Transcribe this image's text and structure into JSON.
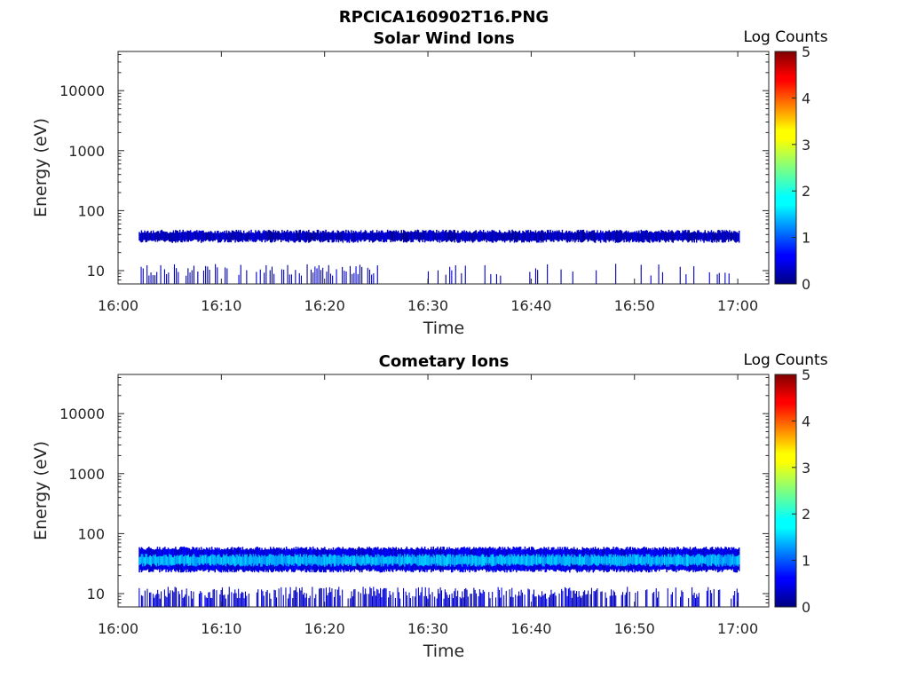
{
  "figure_title": "RPCICA160902T16.PNG",
  "colorbar_label": "Log Counts",
  "colorbar_ticks": [
    "0",
    "1",
    "2",
    "3",
    "4",
    "5"
  ],
  "colorbar_range": [
    0,
    5
  ],
  "colormap": "jet",
  "chart_data": [
    {
      "type": "heatmap",
      "title": "Solar Wind Ions",
      "xlabel": "Time",
      "ylabel": "Energy (eV)",
      "y_scale": "log",
      "xlim": [
        "16:00",
        "17:03"
      ],
      "ylim": [
        6,
        45000
      ],
      "x_ticks": [
        "16:00",
        "16:10",
        "16:20",
        "16:30",
        "16:40",
        "16:50",
        "17:00"
      ],
      "y_ticks": [
        "10",
        "100",
        "1000",
        "10000"
      ],
      "data_time_range": [
        "16:02",
        "17:00"
      ],
      "bands": [
        {
          "energy_range_eV": [
            31,
            45
          ],
          "log_counts": 0.3,
          "coverage": "continuous"
        },
        {
          "energy_range_eV": [
            6,
            13
          ],
          "log_counts": 0.2,
          "coverage": "sparse"
        }
      ]
    },
    {
      "type": "heatmap",
      "title": "Cometary Ions",
      "xlabel": "Time",
      "ylabel": "Energy (eV)",
      "y_scale": "log",
      "xlim": [
        "16:00",
        "17:03"
      ],
      "ylim": [
        6,
        45000
      ],
      "x_ticks": [
        "16:00",
        "16:10",
        "16:20",
        "16:30",
        "16:40",
        "16:50",
        "17:00"
      ],
      "y_ticks": [
        "10",
        "100",
        "1000",
        "10000"
      ],
      "data_time_range": [
        "16:02",
        "17:00"
      ],
      "bands": [
        {
          "energy_range_eV": [
            24,
            57
          ],
          "log_counts": 0.5,
          "coverage": "continuous"
        },
        {
          "energy_range_eV": [
            30,
            43
          ],
          "log_counts": 1.5,
          "coverage": "continuous"
        },
        {
          "energy_range_eV": [
            6,
            13
          ],
          "log_counts": 0.3,
          "coverage": "dense"
        }
      ]
    }
  ]
}
